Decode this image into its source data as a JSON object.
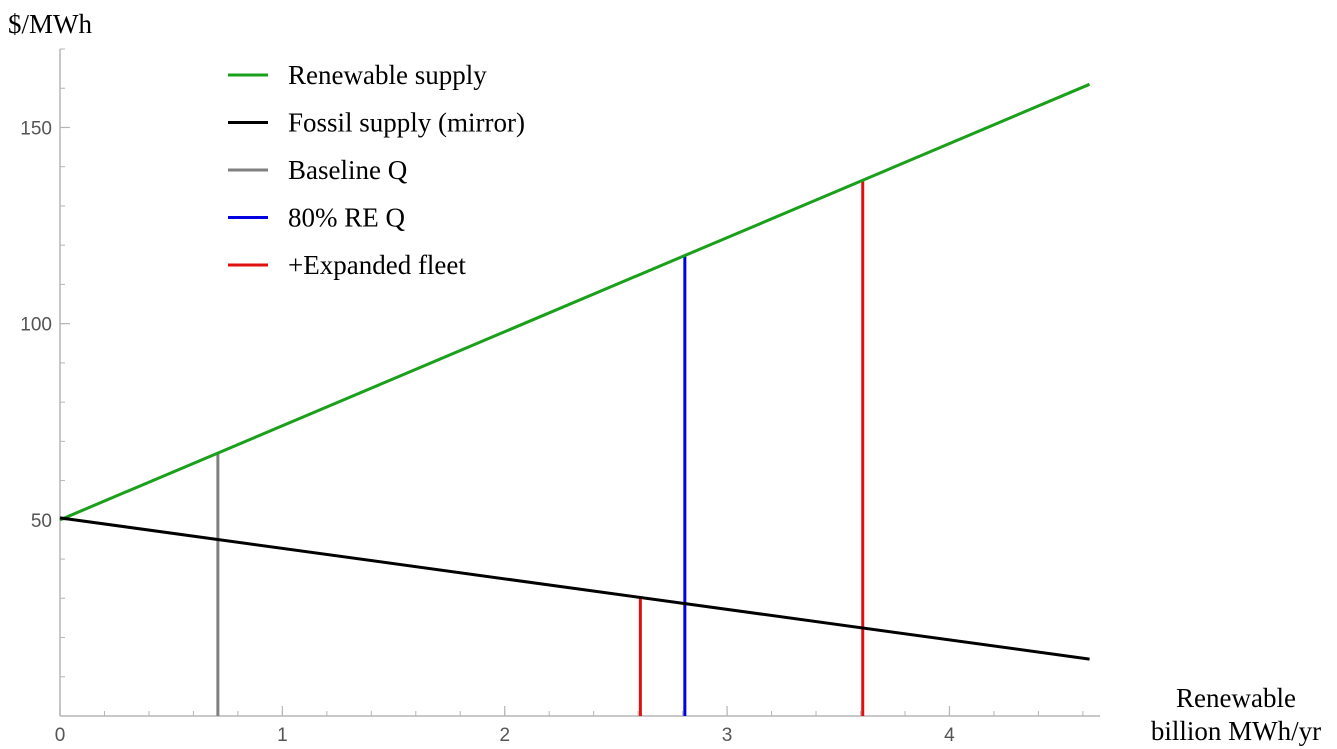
{
  "chart_data": {
    "type": "line",
    "xlabel_line1": "Renewable",
    "xlabel_line2": "billion MWh/yr",
    "ylabel": "$/MWh",
    "xlim": [
      0,
      4.65
    ],
    "ylim": [
      0,
      170
    ],
    "x_ticks": [
      0,
      1,
      2,
      3,
      4
    ],
    "y_ticks": [
      50,
      100,
      150
    ],
    "x_minor_step": 0.2,
    "y_minor_step": 10,
    "grid": false,
    "legend_position": "top-left",
    "series": [
      {
        "name": "Renewable supply",
        "color": "#1aa01a",
        "kind": "line",
        "x": [
          0,
          4.63
        ],
        "y": [
          50,
          161
        ]
      },
      {
        "name": "Fossil supply (mirror)",
        "color": "#000000",
        "kind": "line",
        "x": [
          0,
          4.63
        ],
        "y": [
          50.5,
          14.5
        ]
      },
      {
        "name": "Baseline Q",
        "color": "#808080",
        "kind": "vline",
        "x": [
          0.71
        ],
        "y_top": [
          67
        ]
      },
      {
        "name": "80% RE Q",
        "color": "#0000e0",
        "kind": "vline",
        "x": [
          2.81
        ],
        "y_top": [
          117.5
        ]
      },
      {
        "name": "+Expanded fleet",
        "color": "#e01010",
        "kind": "vline",
        "x": [
          2.61,
          3.61
        ],
        "y_top": [
          30.5,
          136.5
        ]
      }
    ]
  }
}
